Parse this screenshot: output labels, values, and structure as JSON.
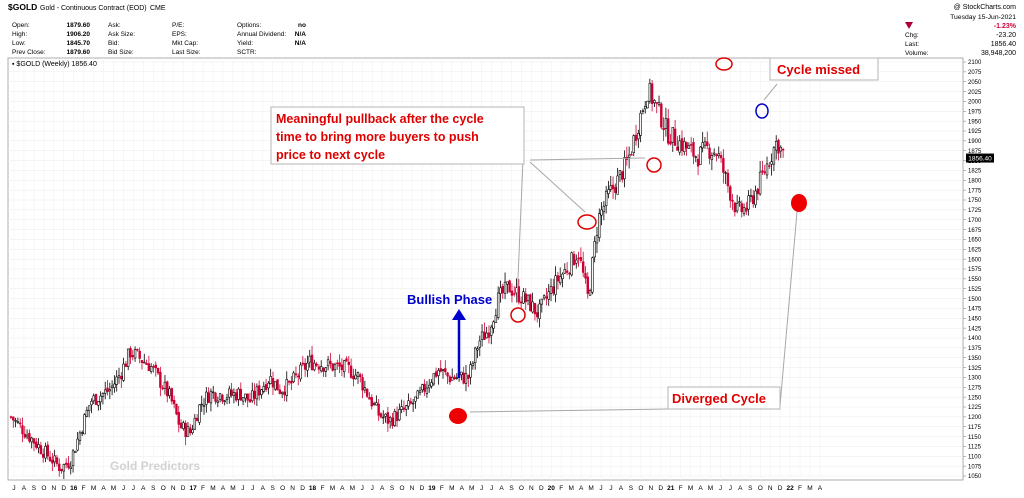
{
  "header": {
    "symbol": "$GOLD",
    "name": "Gold - Continuous Contract (EOD)",
    "exchange": "CME",
    "copyright": "@ StockCharts.com",
    "left_fields": [
      {
        "label": "Open:",
        "value": "1879.60"
      },
      {
        "label": "High:",
        "value": "1906.20"
      },
      {
        "label": "Low:",
        "value": "1845.70"
      },
      {
        "label": "Prev Close:",
        "value": "1879.60"
      }
    ],
    "mid_fields": [
      {
        "label": "Ask:",
        "value": ""
      },
      {
        "label": "Ask Size:",
        "value": ""
      },
      {
        "label": "Bid:",
        "value": ""
      },
      {
        "label": "Bid Size:",
        "value": ""
      }
    ],
    "mid2_fields": [
      {
        "label": "P/E:",
        "value": ""
      },
      {
        "label": "EPS:",
        "value": ""
      },
      {
        "label": "Mkt Cap:",
        "value": ""
      },
      {
        "label": "Last Size:",
        "value": ""
      }
    ],
    "right_fields": [
      {
        "label": "Options:",
        "value": "no"
      },
      {
        "label": "Annual Dividend:",
        "value": "N/A"
      },
      {
        "label": "Yield:",
        "value": "N/A"
      },
      {
        "label": "SCTR:",
        "value": ""
      }
    ],
    "date_line": "Tuesday  15-Jun-2021",
    "summary": [
      {
        "label": "",
        "value": "-1.23%"
      },
      {
        "label": "Chg:",
        "value": "-23.20"
      },
      {
        "label": "Last:",
        "value": "1856.40"
      },
      {
        "label": "Volume:",
        "value": "38,948,200"
      }
    ]
  },
  "colors": {
    "up": "#000000",
    "down": "#cc0033",
    "accent_red": "#e00000",
    "accent_blue": "#0000cc",
    "last_tag": "#000000"
  },
  "chart_data": {
    "type": "candlestick",
    "series_label": "▪ $GOLD (Weekly) 1856.40",
    "last_value_tag": "1856.40",
    "ylim": [
      1050,
      2100
    ],
    "y_ticks": [
      1050,
      1075,
      1100,
      1125,
      1150,
      1175,
      1200,
      1225,
      1250,
      1275,
      1300,
      1325,
      1350,
      1375,
      1400,
      1425,
      1450,
      1475,
      1500,
      1525,
      1550,
      1575,
      1600,
      1625,
      1650,
      1675,
      1700,
      1725,
      1750,
      1775,
      1800,
      1825,
      1850,
      1875,
      1900,
      1925,
      1950,
      1975,
      2000,
      2025,
      2050,
      2075,
      2100
    ],
    "x_months": [
      "J",
      "A",
      "S",
      "O",
      "N",
      "D",
      "16",
      "F",
      "M",
      "A",
      "M",
      "J",
      "J",
      "A",
      "S",
      "O",
      "N",
      "D",
      "17",
      "F",
      "M",
      "A",
      "M",
      "J",
      "J",
      "A",
      "S",
      "O",
      "N",
      "D",
      "18",
      "F",
      "M",
      "A",
      "M",
      "J",
      "J",
      "A",
      "S",
      "O",
      "N",
      "D",
      "19",
      "F",
      "M",
      "A",
      "M",
      "J",
      "J",
      "A",
      "S",
      "O",
      "N",
      "D",
      "20",
      "F",
      "M",
      "A",
      "M",
      "J",
      "J",
      "A",
      "S",
      "O",
      "N",
      "D",
      "21",
      "F",
      "M",
      "A",
      "M",
      "J",
      "J",
      "A",
      "S",
      "O",
      "N",
      "D",
      "22",
      "F",
      "M",
      "A"
    ],
    "anchors": [
      [
        0,
        1200
      ],
      [
        3,
        1120
      ],
      [
        5,
        1070
      ],
      [
        6,
        1090
      ],
      [
        8,
        1240
      ],
      [
        10,
        1270
      ],
      [
        11,
        1310
      ],
      [
        12,
        1365
      ],
      [
        14,
        1330
      ],
      [
        16,
        1250
      ],
      [
        17,
        1175
      ],
      [
        18,
        1160
      ],
      [
        19,
        1230
      ],
      [
        20,
        1260
      ],
      [
        22,
        1255
      ],
      [
        23,
        1260
      ],
      [
        24,
        1240
      ],
      [
        26,
        1300
      ],
      [
        27,
        1270
      ],
      [
        28,
        1280
      ],
      [
        30,
        1340
      ],
      [
        32,
        1330
      ],
      [
        34,
        1320
      ],
      [
        35,
        1300
      ],
      [
        36,
        1250
      ],
      [
        37,
        1205
      ],
      [
        38,
        1190
      ],
      [
        40,
        1225
      ],
      [
        41,
        1250
      ],
      [
        42,
        1290
      ],
      [
        43,
        1320
      ],
      [
        44,
        1300
      ],
      [
        46,
        1300
      ],
      [
        47,
        1390
      ],
      [
        48,
        1420
      ],
      [
        49,
        1500
      ],
      [
        50,
        1530
      ],
      [
        52,
        1490
      ],
      [
        53,
        1460
      ],
      [
        54,
        1510
      ],
      [
        55,
        1550
      ],
      [
        56,
        1580
      ],
      [
        57,
        1620
      ],
      [
        58,
        1500
      ],
      [
        59,
        1700
      ],
      [
        60,
        1760
      ],
      [
        61,
        1800
      ],
      [
        62,
        1850
      ],
      [
        63,
        1940
      ],
      [
        64,
        2030
      ],
      [
        65,
        1980
      ],
      [
        66,
        1920
      ],
      [
        67,
        1900
      ],
      [
        68,
        1880
      ],
      [
        69,
        1860
      ],
      [
        70,
        1880
      ],
      [
        71,
        1870
      ],
      [
        72,
        1790
      ],
      [
        73,
        1720
      ],
      [
        74,
        1730
      ],
      [
        75,
        1780
      ],
      [
        76,
        1840
      ],
      [
        77,
        1900
      ],
      [
        77.5,
        1870
      ]
    ],
    "annotations": [
      {
        "text": "Meaningful pullback after the cycle time to bring more buyers to push price to next cycle",
        "lines": [
          "Meaningful pullback after the cycle",
          "time to bring more buyers to push",
          "price to next cycle"
        ]
      },
      {
        "text": "Cycle missed"
      },
      {
        "text": "Bullish Phase"
      },
      {
        "text": "Diverged Cycle"
      }
    ],
    "watermark": "Gold Predictors"
  }
}
